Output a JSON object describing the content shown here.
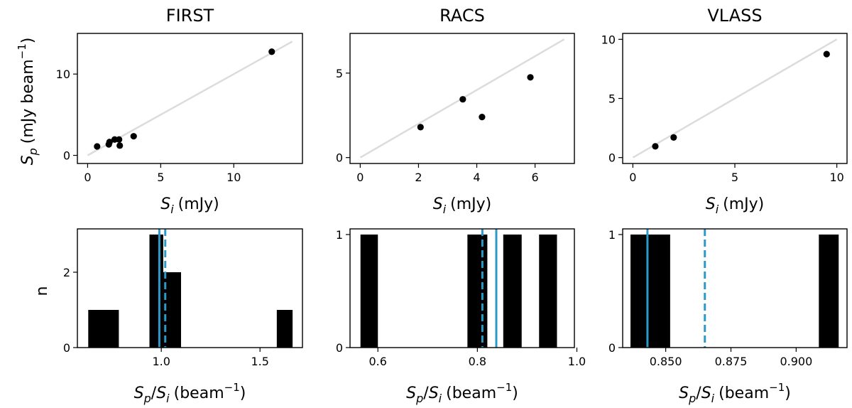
{
  "chart_data": [
    {
      "type": "scatter",
      "title": "FIRST",
      "xlabel_main": "S",
      "xlabel_sub": "i",
      "xlabel_unit": "(mJy)",
      "ylabel_main": "S",
      "ylabel_sub": "p",
      "ylabel_unit": "(mJy beam",
      "ylabel_sup": "−1",
      "ylabel_close": ")",
      "xlim": [
        -0.7,
        14.7
      ],
      "ylim": [
        -1.0,
        15.0
      ],
      "xticks": [
        0,
        5,
        10
      ],
      "xtick_labels": [
        "0",
        "5",
        "10"
      ],
      "yticks": [
        0,
        10
      ],
      "ytick_labels": [
        "0",
        "10"
      ],
      "reference_line": {
        "from": [
          0,
          0
        ],
        "to": [
          14,
          14
        ],
        "color": "#dcdcdc"
      },
      "points": [
        {
          "x": 0.65,
          "y": 1.1
        },
        {
          "x": 1.45,
          "y": 1.35
        },
        {
          "x": 1.5,
          "y": 1.65
        },
        {
          "x": 1.85,
          "y": 1.95
        },
        {
          "x": 2.15,
          "y": 1.95
        },
        {
          "x": 2.2,
          "y": 1.2
        },
        {
          "x": 3.15,
          "y": 2.35
        },
        {
          "x": 12.6,
          "y": 12.75
        }
      ]
    },
    {
      "type": "scatter",
      "title": "RACS",
      "xlabel_main": "S",
      "xlabel_sub": "i",
      "xlabel_unit": "(mJy)",
      "xlim": [
        -0.35,
        7.35
      ],
      "ylim": [
        -0.35,
        7.35
      ],
      "xticks": [
        0,
        2,
        4,
        6
      ],
      "xtick_labels": [
        "0",
        "2",
        "4",
        "6"
      ],
      "yticks": [
        0,
        5
      ],
      "ytick_labels": [
        "0",
        "5"
      ],
      "reference_line": {
        "from": [
          0,
          0
        ],
        "to": [
          7,
          7
        ],
        "color": "#dcdcdc"
      },
      "points": [
        {
          "x": 2.07,
          "y": 1.8
        },
        {
          "x": 3.52,
          "y": 3.45
        },
        {
          "x": 4.18,
          "y": 2.4
        },
        {
          "x": 5.84,
          "y": 4.75
        }
      ]
    },
    {
      "type": "scatter",
      "title": "VLASS",
      "xlabel_main": "S",
      "xlabel_sub": "i",
      "xlabel_unit": "(mJy)",
      "xlim": [
        -0.5,
        10.5
      ],
      "ylim": [
        -0.5,
        10.5
      ],
      "xticks": [
        0,
        5,
        10
      ],
      "xtick_labels": [
        "0",
        "5",
        "10"
      ],
      "yticks": [
        0,
        5,
        10
      ],
      "ytick_labels": [
        "0",
        "5",
        "10"
      ],
      "reference_line": {
        "from": [
          0,
          0
        ],
        "to": [
          10,
          10
        ],
        "color": "#dcdcdc"
      },
      "points": [
        {
          "x": 1.1,
          "y": 0.95
        },
        {
          "x": 2.0,
          "y": 1.7
        },
        {
          "x": 9.5,
          "y": 8.75
        }
      ]
    },
    {
      "type": "histogram",
      "xlabel_main": "S",
      "xlabel_sub_p": "p",
      "xlabel_slash": "/",
      "xlabel_main2": "S",
      "xlabel_sub_i": "i",
      "xlabel_unit": "(beam",
      "xlabel_sup": "−1",
      "xlabel_close": ")",
      "ylabel": "n",
      "xlim": [
        0.575,
        1.715
      ],
      "ylim": [
        0,
        3.15
      ],
      "xticks": [
        1.0,
        1.5
      ],
      "xtick_labels": [
        "1.0",
        "1.5"
      ],
      "yticks": [
        0,
        2
      ],
      "ytick_labels": [
        "0",
        "2"
      ],
      "bins": [
        {
          "x0": 0.63,
          "x1": 0.785,
          "count": 1
        },
        {
          "x0": 0.94,
          "x1": 1.01,
          "count": 3
        },
        {
          "x0": 1.01,
          "x1": 1.1,
          "count": 2
        },
        {
          "x0": 1.585,
          "x1": 1.665,
          "count": 1
        }
      ],
      "lines": [
        {
          "x": 0.99,
          "style": "solid",
          "color": "#2c9ac8"
        },
        {
          "x": 1.02,
          "style": "dashed",
          "color": "#2c9ac8"
        }
      ]
    },
    {
      "type": "histogram",
      "xlabel_main": "S",
      "xlabel_sub_p": "p",
      "xlabel_slash": "/",
      "xlabel_main2": "S",
      "xlabel_sub_i": "i",
      "xlabel_unit": "(beam",
      "xlabel_sup": "−1",
      "xlabel_close": ")",
      "xlim": [
        0.544,
        0.995
      ],
      "ylim": [
        0,
        1.05
      ],
      "xticks": [
        0.6,
        0.8,
        1.0
      ],
      "xtick_labels": [
        "0.6",
        "0.8",
        "1.0"
      ],
      "yticks": [
        0,
        1
      ],
      "ytick_labels": [
        "0",
        "1"
      ],
      "bins": [
        {
          "x0": 0.565,
          "x1": 0.6,
          "count": 1
        },
        {
          "x0": 0.78,
          "x1": 0.82,
          "count": 1
        },
        {
          "x0": 0.852,
          "x1": 0.889,
          "count": 1
        },
        {
          "x0": 0.924,
          "x1": 0.96,
          "count": 1
        }
      ],
      "lines": [
        {
          "x": 0.838,
          "style": "solid",
          "color": "#2c9ac8"
        },
        {
          "x": 0.81,
          "style": "dashed",
          "color": "#2c9ac8"
        }
      ]
    },
    {
      "type": "histogram",
      "xlabel_main": "S",
      "xlabel_sub_p": "p",
      "xlabel_slash": "/",
      "xlabel_main2": "S",
      "xlabel_sub_i": "i",
      "xlabel_unit": "(beam",
      "xlabel_sup": "−1",
      "xlabel_close": ")",
      "xlim": [
        0.8335,
        0.9195
      ],
      "ylim": [
        0,
        1.05
      ],
      "xticks": [
        0.85,
        0.875,
        0.9
      ],
      "xtick_labels": [
        "0.850",
        "0.875",
        "0.900"
      ],
      "yticks": [
        0,
        1
      ],
      "ytick_labels": [
        "0",
        "1"
      ],
      "bins": [
        {
          "x0": 0.8365,
          "x1": 0.8517,
          "count": 1
        },
        {
          "x0": 0.9087,
          "x1": 0.9163,
          "count": 1
        }
      ],
      "lines": [
        {
          "x": 0.843,
          "style": "solid",
          "color": "#2c9ac8"
        },
        {
          "x": 0.865,
          "style": "dashed",
          "color": "#2c9ac8"
        }
      ]
    }
  ]
}
